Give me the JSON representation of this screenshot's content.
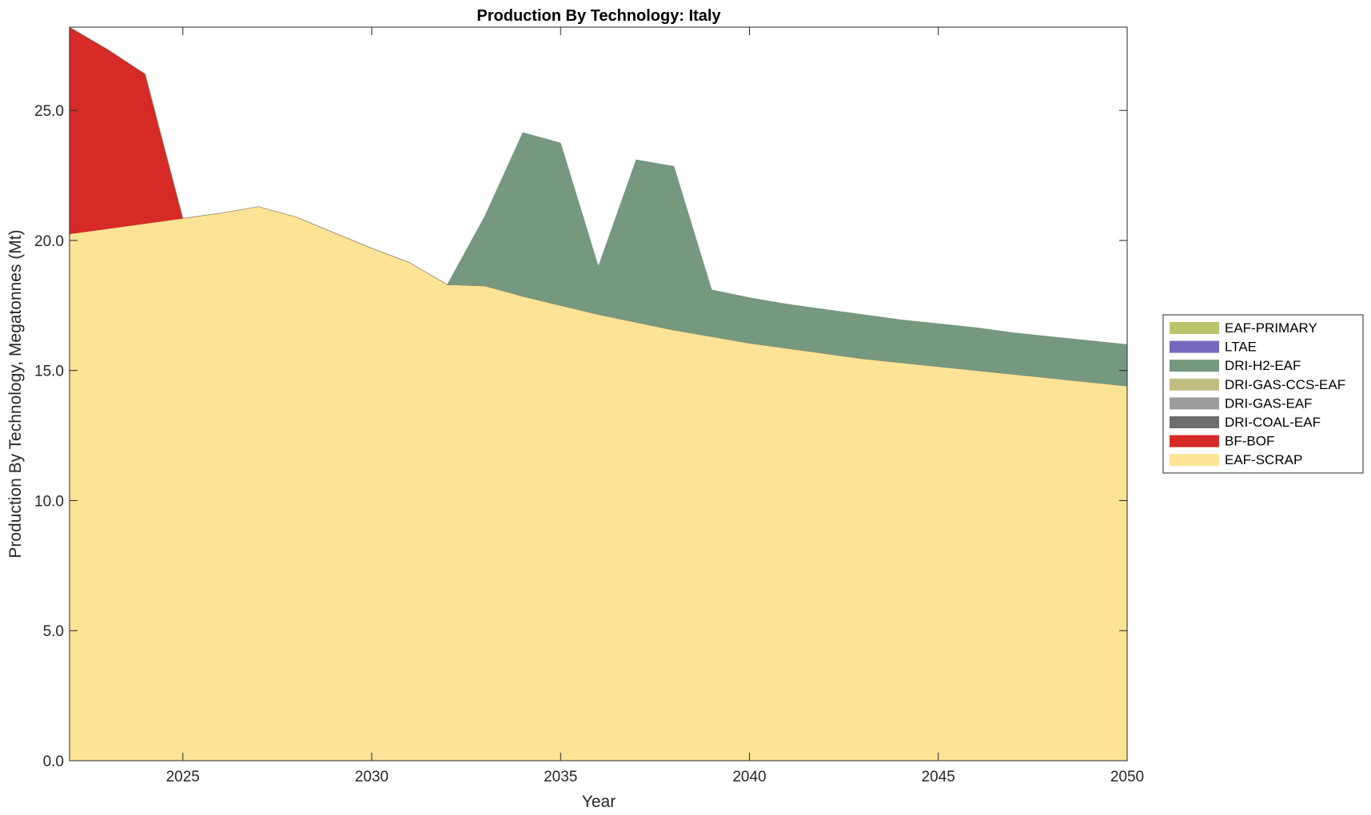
{
  "chart_data": {
    "type": "area",
    "stacked": true,
    "title": "Production By Technology: Italy",
    "xlabel": "Year",
    "ylabel": "Production By Technology, Megatonnes (Mt)",
    "xlim": [
      2022,
      2050
    ],
    "ylim": [
      0,
      28.2
    ],
    "xticks": [
      2025,
      2030,
      2035,
      2040,
      2045,
      2050
    ],
    "yticks": [
      0,
      5,
      10,
      15,
      20,
      25
    ],
    "ytick_labels": [
      "0.0",
      "5.0",
      "10.0",
      "15.0",
      "20.0",
      "25.0"
    ],
    "legend_position": "right",
    "x": [
      2022,
      2023,
      2024,
      2025,
      2026,
      2027,
      2028,
      2029,
      2030,
      2031,
      2032,
      2033,
      2034,
      2035,
      2036,
      2037,
      2038,
      2039,
      2040,
      2041,
      2042,
      2043,
      2044,
      2045,
      2046,
      2047,
      2048,
      2049,
      2050
    ],
    "series": [
      {
        "name": "EAF-SCRAP",
        "color": "#FDE395",
        "values": [
          20.25,
          20.45,
          20.65,
          20.85,
          21.05,
          21.3,
          20.9,
          20.3,
          19.7,
          19.15,
          18.3,
          18.25,
          17.85,
          17.5,
          17.15,
          16.85,
          16.55,
          16.3,
          16.05,
          15.85,
          15.65,
          15.45,
          15.3,
          15.15,
          15.0,
          14.85,
          14.7,
          14.55,
          14.4
        ]
      },
      {
        "name": "BF-BOF",
        "color": "#D52A25",
        "values": [
          7.95,
          6.9,
          5.75,
          0,
          0,
          0,
          0,
          0,
          0,
          0,
          0,
          0,
          0,
          0,
          0,
          0,
          0,
          0,
          0,
          0,
          0,
          0,
          0,
          0,
          0,
          0,
          0,
          0,
          0
        ]
      },
      {
        "name": "DRI-COAL-EAF",
        "color": "#6C6C6C",
        "values": [
          0,
          0,
          0,
          0,
          0,
          0,
          0,
          0,
          0,
          0,
          0,
          0,
          0,
          0,
          0,
          0,
          0,
          0,
          0,
          0,
          0,
          0,
          0,
          0,
          0,
          0,
          0,
          0,
          0
        ]
      },
      {
        "name": "DRI-GAS-EAF",
        "color": "#9C9C9C",
        "values": [
          0,
          0,
          0,
          0,
          0,
          0,
          0,
          0,
          0,
          0,
          0,
          0,
          0,
          0,
          0,
          0,
          0,
          0,
          0,
          0,
          0,
          0,
          0,
          0,
          0,
          0,
          0,
          0,
          0
        ]
      },
      {
        "name": "DRI-GAS-CCS-EAF",
        "color": "#C4BD82",
        "values": [
          0,
          0,
          0,
          0,
          0,
          0,
          0,
          0,
          0,
          0,
          0,
          0,
          0,
          0,
          0,
          0,
          0,
          0,
          0,
          0,
          0,
          0,
          0,
          0,
          0,
          0,
          0,
          0,
          0
        ]
      },
      {
        "name": "DRI-H2-EAF",
        "color": "#76987E",
        "values": [
          0,
          0,
          0,
          0,
          0,
          0,
          0,
          0,
          0,
          0,
          0,
          2.7,
          6.3,
          6.25,
          1.85,
          6.25,
          6.3,
          1.8,
          1.75,
          1.7,
          1.7,
          1.7,
          1.65,
          1.65,
          1.65,
          1.6,
          1.6,
          1.6,
          1.6
        ]
      },
      {
        "name": "LTAE",
        "color": "#7469BC",
        "values": [
          0,
          0,
          0,
          0,
          0,
          0,
          0,
          0,
          0,
          0,
          0,
          0,
          0,
          0,
          0,
          0,
          0,
          0,
          0,
          0,
          0,
          0,
          0,
          0,
          0,
          0,
          0,
          0,
          0
        ]
      },
      {
        "name": "EAF-PRIMARY",
        "color": "#BBC46A",
        "values": [
          0,
          0,
          0,
          0,
          0,
          0,
          0,
          0,
          0,
          0,
          0,
          0,
          0,
          0,
          0,
          0,
          0,
          0,
          0,
          0,
          0,
          0,
          0,
          0,
          0,
          0,
          0,
          0,
          0
        ]
      }
    ],
    "legend_order": [
      "EAF-PRIMARY",
      "LTAE",
      "DRI-H2-EAF",
      "DRI-GAS-CCS-EAF",
      "DRI-GAS-EAF",
      "DRI-COAL-EAF",
      "BF-BOF",
      "EAF-SCRAP"
    ]
  }
}
